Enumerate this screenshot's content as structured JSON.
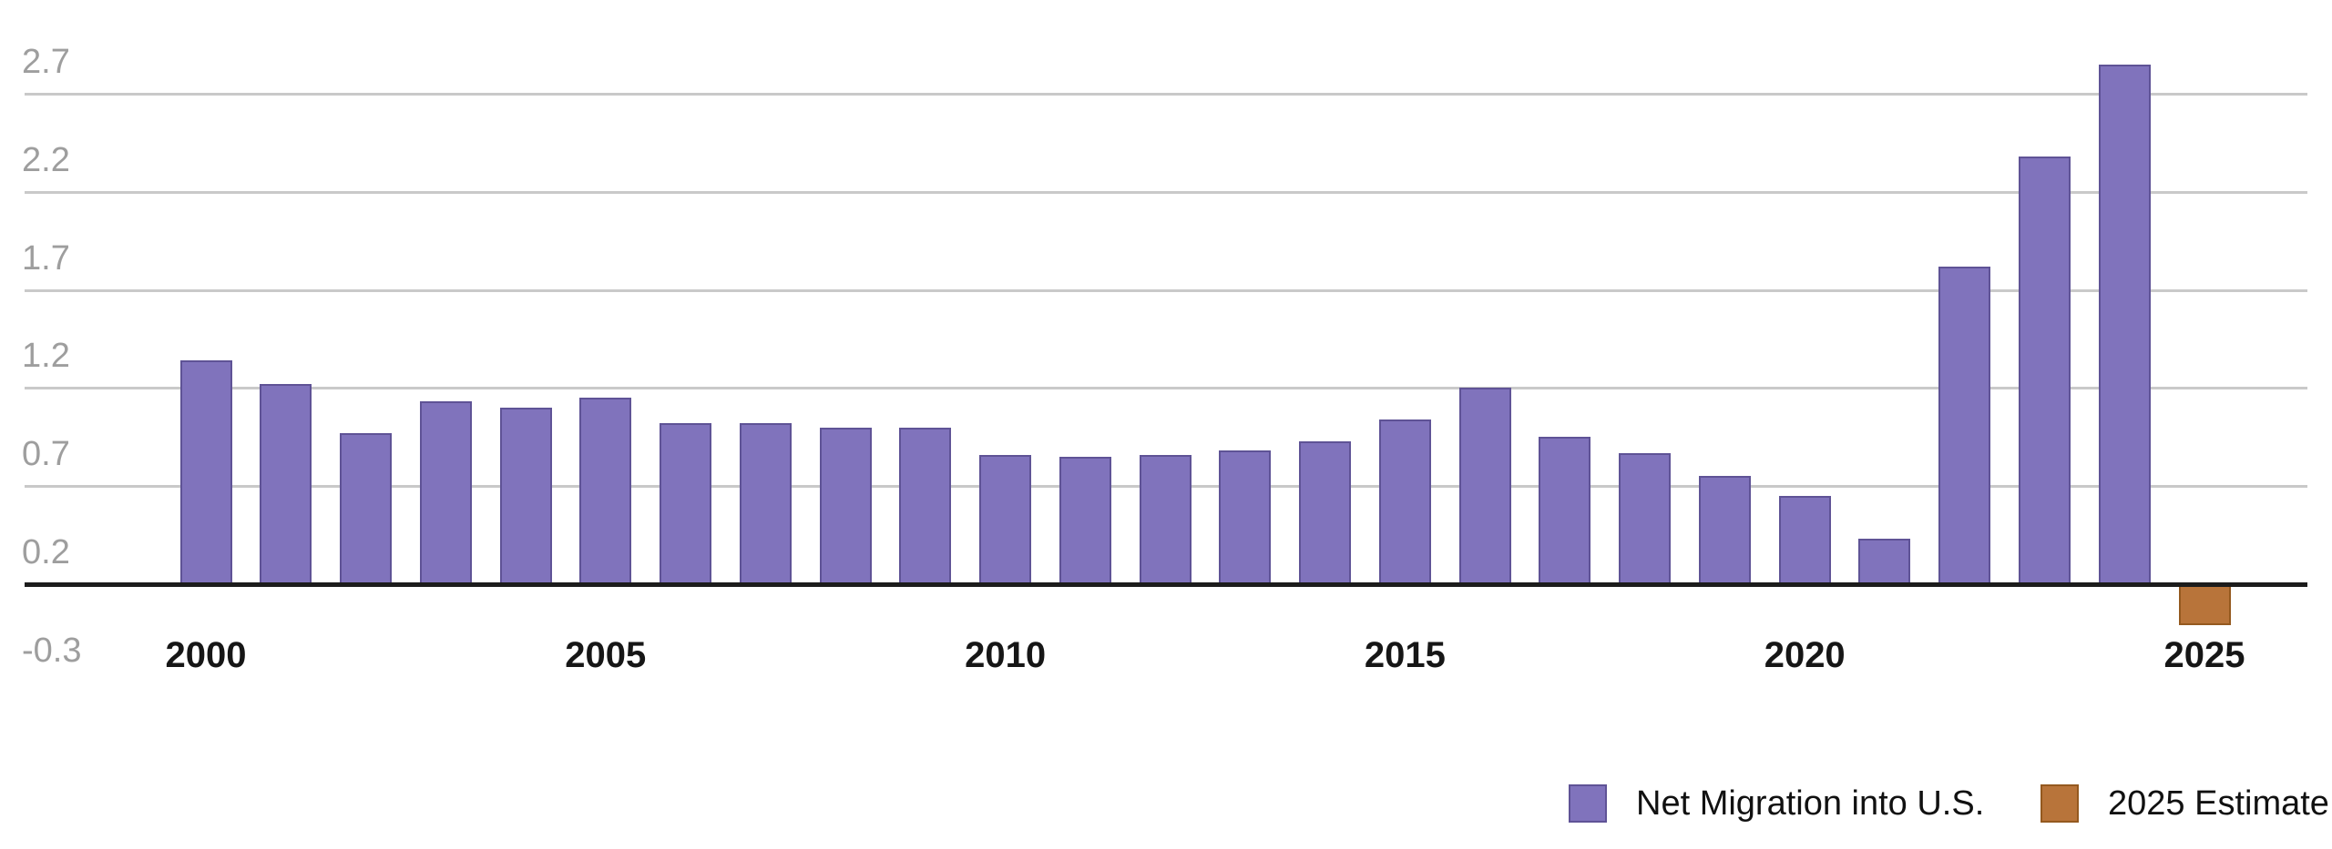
{
  "chart_data": {
    "type": "bar",
    "categories": [
      "2000",
      "2001",
      "2002",
      "2003",
      "2004",
      "2005",
      "2006",
      "2007",
      "2008",
      "2009",
      "2010",
      "2011",
      "2012",
      "2013",
      "2014",
      "2015",
      "2016",
      "2017",
      "2018",
      "2019",
      "2020",
      "2021",
      "2022",
      "2023",
      "2024",
      "2025"
    ],
    "values": [
      1.14,
      1.02,
      0.77,
      0.93,
      0.9,
      0.95,
      0.82,
      0.82,
      0.8,
      0.8,
      0.66,
      0.65,
      0.66,
      0.68,
      0.73,
      0.84,
      1.0,
      0.75,
      0.67,
      0.55,
      0.45,
      0.23,
      1.62,
      2.18,
      2.65,
      -0.21
    ],
    "estimate_index": 25,
    "y_tick_labels": [
      "2.7",
      "2.2",
      "1.7",
      "1.2",
      "0.7",
      "0.2",
      "-0.3"
    ],
    "x_ticks": [
      {
        "label": "2000",
        "index": 0
      },
      {
        "label": "2005",
        "index": 5
      },
      {
        "label": "2010",
        "index": 10
      },
      {
        "label": "2015",
        "index": 15
      },
      {
        "label": "2020",
        "index": 20
      },
      {
        "label": "2025",
        "index": 25
      }
    ],
    "ylim": [
      -0.3,
      2.7
    ],
    "grid": "horizontal",
    "baseline": 0,
    "legend_position": "bottom-right",
    "legend": [
      {
        "label": "Net Migration into U.S.",
        "color": "#8073BC",
        "border_color": "#5F5396"
      },
      {
        "label": "2025 Estimate",
        "color": "#B8743A",
        "border_color": "#94591F"
      }
    ],
    "colors": {
      "gridline": "#C9C9C9",
      "axis_line": "#1C1C1C",
      "y_tick_text": "#9E9E9E",
      "x_tick_text": "#161616"
    }
  }
}
